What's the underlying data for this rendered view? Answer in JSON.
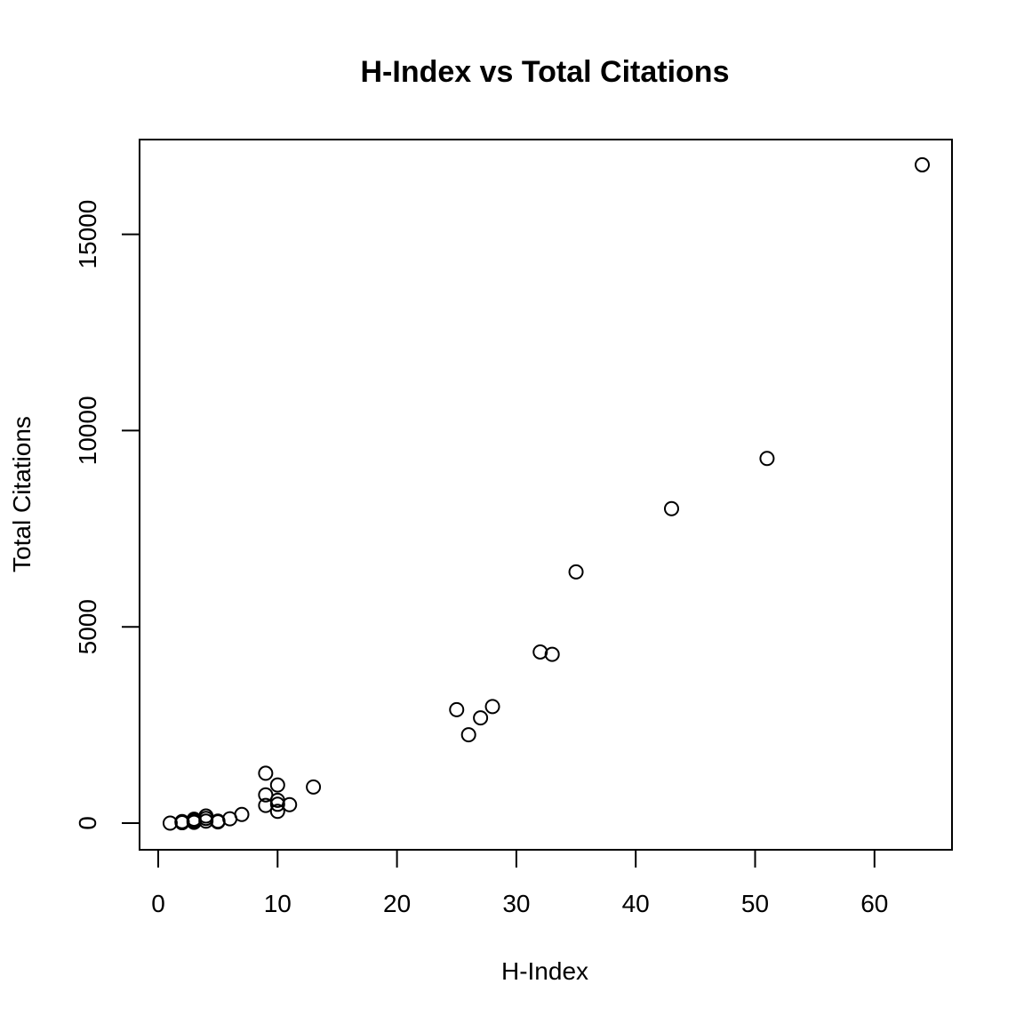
{
  "chart_data": {
    "type": "scatter",
    "title": "H-Index vs Total Citations",
    "xlabel": "H-Index",
    "ylabel": "Total Citations",
    "xlim": [
      0,
      65
    ],
    "ylim": [
      0,
      17000
    ],
    "x_ticks": [
      0,
      10,
      20,
      30,
      40,
      50,
      60
    ],
    "y_ticks": [
      0,
      5000,
      10000,
      15000
    ],
    "grid": false,
    "points": [
      {
        "x": 1,
        "y": 0
      },
      {
        "x": 2,
        "y": 10
      },
      {
        "x": 2,
        "y": 40
      },
      {
        "x": 2,
        "y": 30
      },
      {
        "x": 3,
        "y": 20
      },
      {
        "x": 3,
        "y": 60
      },
      {
        "x": 3,
        "y": 100
      },
      {
        "x": 4,
        "y": 50
      },
      {
        "x": 4,
        "y": 120
      },
      {
        "x": 4,
        "y": 180
      },
      {
        "x": 5,
        "y": 30
      },
      {
        "x": 5,
        "y": 50
      },
      {
        "x": 6,
        "y": 110
      },
      {
        "x": 7,
        "y": 220
      },
      {
        "x": 9,
        "y": 450
      },
      {
        "x": 9,
        "y": 720
      },
      {
        "x": 9,
        "y": 1270
      },
      {
        "x": 10,
        "y": 300
      },
      {
        "x": 10,
        "y": 480
      },
      {
        "x": 10,
        "y": 580
      },
      {
        "x": 10,
        "y": 970
      },
      {
        "x": 11,
        "y": 470
      },
      {
        "x": 13,
        "y": 920
      },
      {
        "x": 25,
        "y": 2890
      },
      {
        "x": 26,
        "y": 2250
      },
      {
        "x": 27,
        "y": 2680
      },
      {
        "x": 28,
        "y": 2970
      },
      {
        "x": 32,
        "y": 4360
      },
      {
        "x": 33,
        "y": 4300
      },
      {
        "x": 35,
        "y": 6400
      },
      {
        "x": 43,
        "y": 8010
      },
      {
        "x": 51,
        "y": 9290
      },
      {
        "x": 64,
        "y": 16770
      }
    ]
  }
}
